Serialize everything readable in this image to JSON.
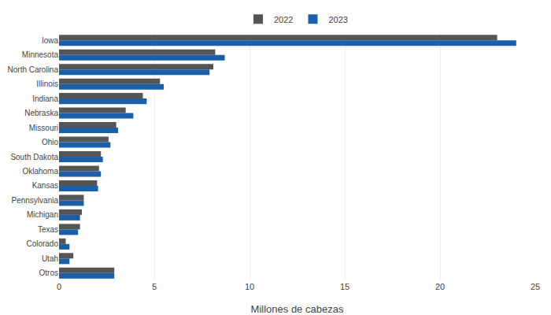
{
  "chart_data": {
    "type": "bar",
    "orientation": "horizontal",
    "categories": [
      "Iowa",
      "Minnesota",
      "North Carolina",
      "Illinois",
      "Indiana",
      "Nebraska",
      "Missouri",
      "Ohio",
      "South Dakota",
      "Oklahoma",
      "Kansas",
      "Pennsylvania",
      "Michigan",
      "Texas",
      "Colorado",
      "Utah",
      "Otros"
    ],
    "series": [
      {
        "name": "2022",
        "color": "#555555",
        "values": [
          23.0,
          8.2,
          8.1,
          5.3,
          4.4,
          3.5,
          3.0,
          2.6,
          2.2,
          2.1,
          2.0,
          1.3,
          1.2,
          1.1,
          0.35,
          0.75,
          2.9
        ]
      },
      {
        "name": "2023",
        "color": "#1a5fa8",
        "values": [
          24.0,
          8.7,
          7.9,
          5.5,
          4.6,
          3.9,
          3.1,
          2.7,
          2.3,
          2.2,
          2.05,
          1.3,
          1.1,
          1.0,
          0.55,
          0.55,
          2.9
        ]
      }
    ],
    "xlabel": "Millones de cabezas",
    "xlim": [
      0,
      25
    ],
    "xticks": [
      0,
      5,
      10,
      15,
      20,
      25
    ],
    "grid": true,
    "legend": "top"
  }
}
